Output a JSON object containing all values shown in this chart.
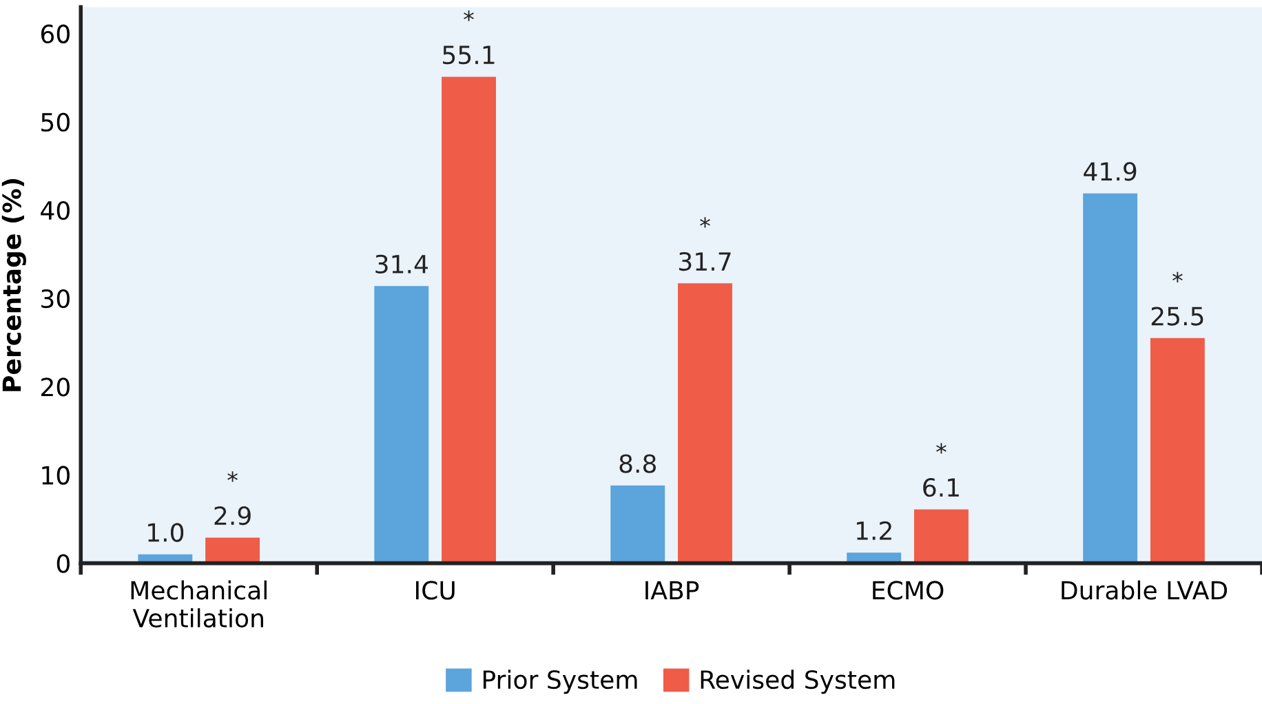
{
  "chart_data": {
    "type": "bar",
    "ylabel": "Percentage (%)",
    "categories": [
      "Mechanical\nVentilation",
      "ICU",
      "IABP",
      "ECMO",
      "Durable LVAD"
    ],
    "series": [
      {
        "name": "Prior System",
        "color": "#5ba4dc",
        "values": [
          1.0,
          31.4,
          8.8,
          1.2,
          41.9
        ],
        "value_labels": [
          "1.0",
          "31.4",
          "8.8",
          "1.2",
          "41.9"
        ]
      },
      {
        "name": "Revised System",
        "color": "#ef5c48",
        "values": [
          2.9,
          55.1,
          31.7,
          6.1,
          25.5
        ],
        "value_labels": [
          "2.9",
          "55.1",
          "31.7",
          "6.1",
          "25.5"
        ]
      }
    ],
    "ylim": [
      0,
      63
    ],
    "yticks": [
      0,
      10,
      20,
      30,
      40,
      50,
      60
    ],
    "grid": false,
    "legend": "bottom",
    "annotations": [
      "*",
      "*",
      "*",
      "*",
      "*"
    ]
  }
}
